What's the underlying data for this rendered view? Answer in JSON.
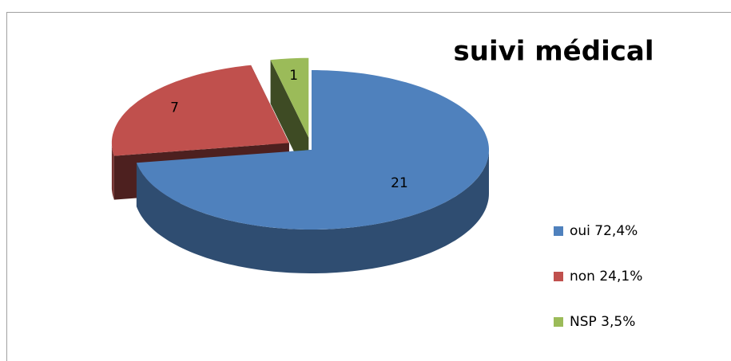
{
  "chart_data": {
    "type": "pie",
    "title": "suivi médical",
    "categories": [
      "oui 72,4%",
      "non 24,1%",
      "NSP 3,5%"
    ],
    "values": [
      21,
      7,
      1
    ],
    "colors": [
      "#4f81bd",
      "#c0504d",
      "#9bbb59"
    ],
    "legend": "right"
  }
}
